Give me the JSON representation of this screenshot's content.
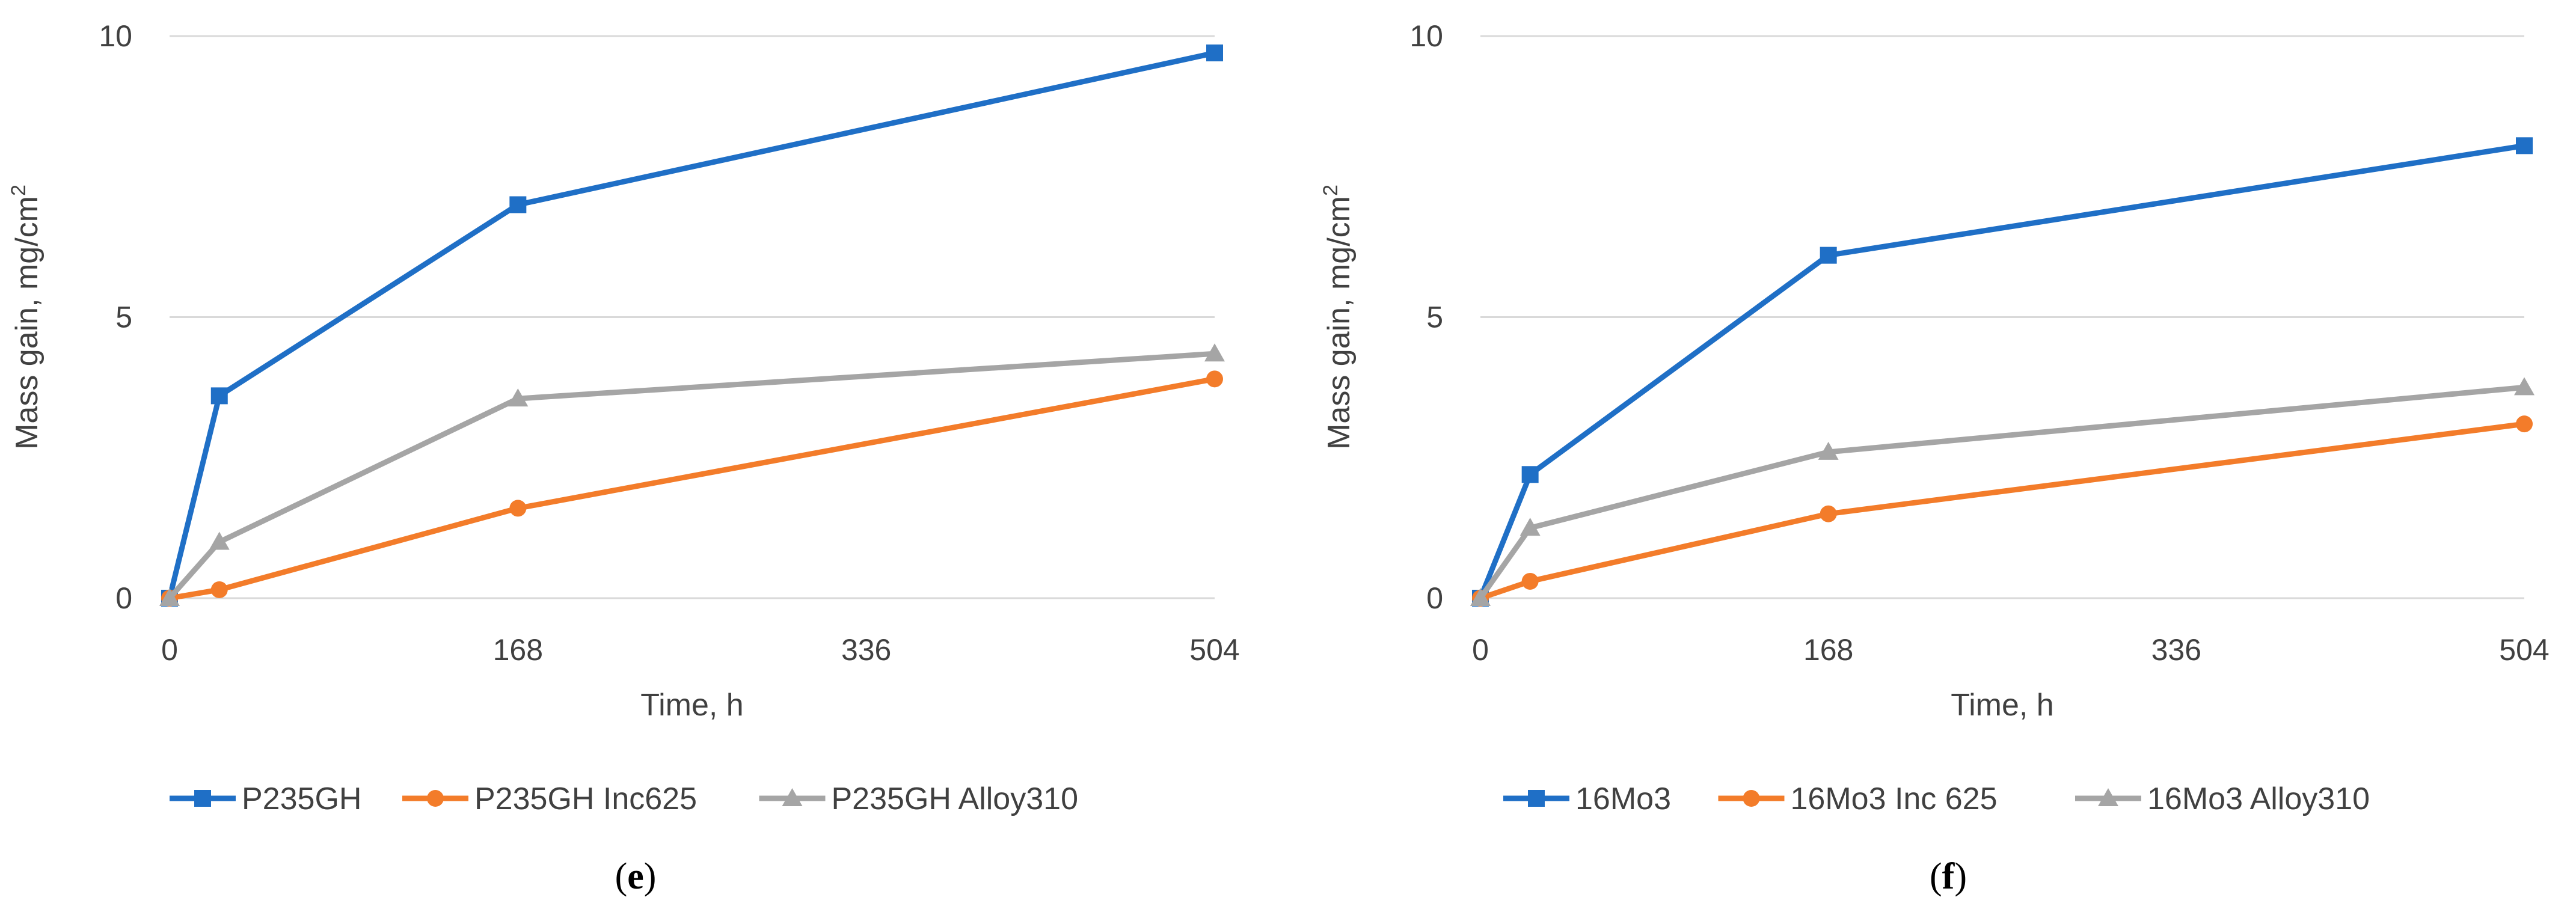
{
  "chart_data": [
    {
      "type": "line",
      "panel": "e",
      "panel_label_open": "(",
      "panel_label_close": ")",
      "xlabel": "Time, h",
      "ylabel": "Mass gain, mg/cm",
      "ylabel_sup": "2",
      "xlim": [
        0,
        504
      ],
      "ylim": [
        0,
        10
      ],
      "xticks": [
        0,
        168,
        336,
        504
      ],
      "yticks": [
        0,
        5,
        10
      ],
      "grid": true,
      "legend_position": "bottom",
      "series": [
        {
          "name": "P235GH",
          "marker": "square",
          "color": "#1f6fc6",
          "x": [
            0,
            24,
            168,
            504
          ],
          "y": [
            0,
            3.6,
            7.0,
            9.7
          ]
        },
        {
          "name": "P235GH Inc625",
          "marker": "circle",
          "color": "#f37c2a",
          "x": [
            0,
            24,
            168,
            504
          ],
          "y": [
            0,
            0.15,
            1.6,
            3.9
          ]
        },
        {
          "name": "P235GH Alloy310",
          "marker": "triangle",
          "color": "#a5a5a5",
          "x": [
            0,
            24,
            168,
            504
          ],
          "y": [
            0,
            1.0,
            3.55,
            4.35
          ]
        }
      ]
    },
    {
      "type": "line",
      "panel": "f",
      "panel_label_open": "(",
      "panel_label_close": ")",
      "xlabel": "Time, h",
      "ylabel": "Mass gain, mg/cm",
      "ylabel_sup": "2",
      "xlim": [
        0,
        504
      ],
      "ylim": [
        0,
        10
      ],
      "xticks": [
        0,
        168,
        336,
        504
      ],
      "yticks": [
        0,
        5,
        10
      ],
      "grid": true,
      "legend_position": "bottom",
      "series": [
        {
          "name": "16Mo3",
          "marker": "square",
          "color": "#1f6fc6",
          "x": [
            0,
            24,
            168,
            504
          ],
          "y": [
            0,
            2.2,
            6.1,
            8.05
          ]
        },
        {
          "name": "16Mo3 Inc 625",
          "marker": "circle",
          "color": "#f37c2a",
          "x": [
            0,
            24,
            168,
            504
          ],
          "y": [
            0,
            0.3,
            1.5,
            3.1
          ]
        },
        {
          "name": "16Mo3 Alloy310",
          "marker": "triangle",
          "color": "#a5a5a5",
          "x": [
            0,
            24,
            168,
            504
          ],
          "y": [
            0,
            1.25,
            2.6,
            3.75
          ]
        }
      ]
    }
  ]
}
